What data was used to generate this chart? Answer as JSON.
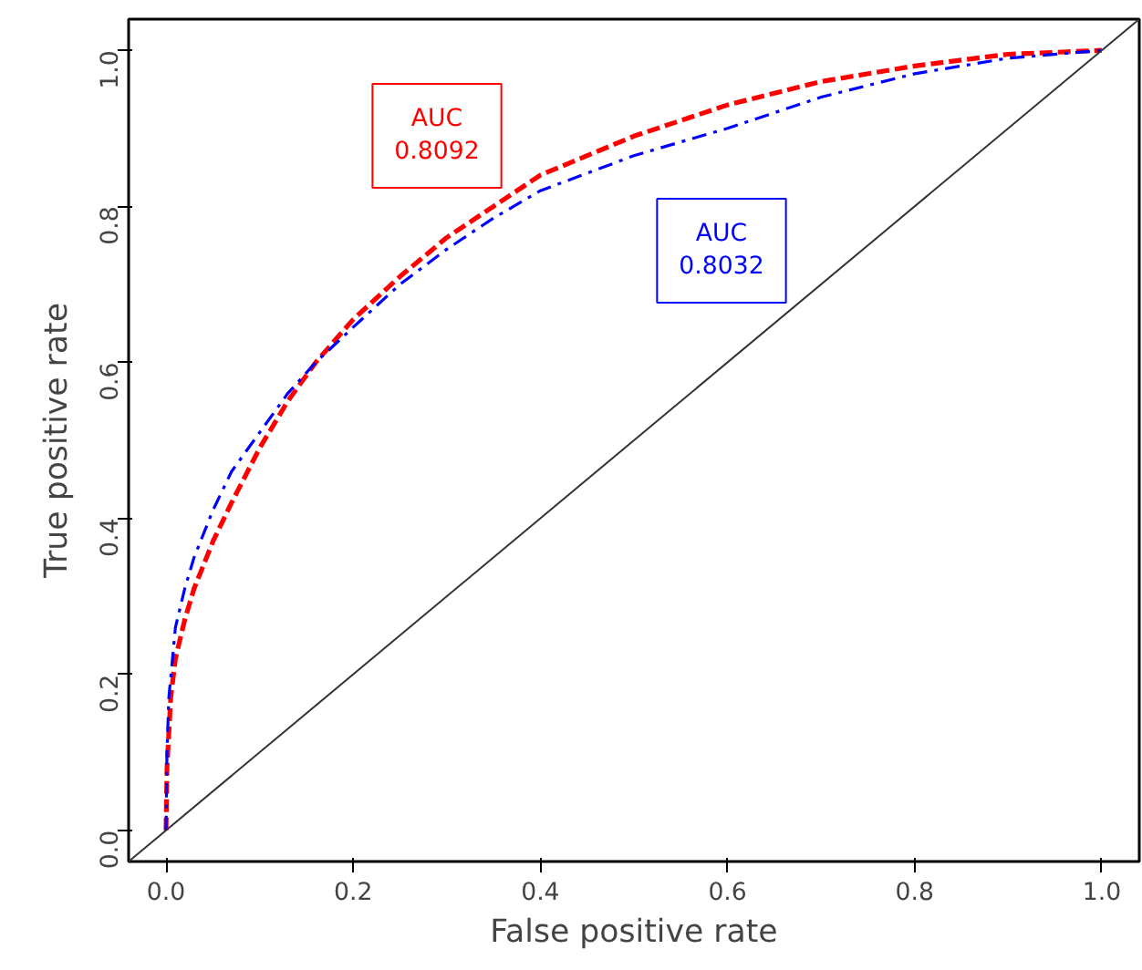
{
  "chart_data": {
    "type": "line",
    "xlabel": "False positive rate",
    "ylabel": "True positive rate",
    "xlim": [
      -0.04,
      1.04
    ],
    "ylim": [
      -0.04,
      1.04
    ],
    "xticks": [
      {
        "value": 0,
        "label": "0.0"
      },
      0.2,
      0.4,
      0.6,
      0.8,
      {
        "value": 1,
        "label": "1.0"
      }
    ],
    "yticks": [
      {
        "value": 0,
        "label": "0.0"
      },
      0.2,
      0.4,
      0.6,
      0.8,
      {
        "value": 1,
        "label": "1.0"
      }
    ],
    "grid": false,
    "series": [
      {
        "color": "#ff0000",
        "line_style": "dashed",
        "x": [
          0,
          0.001,
          0.005,
          0.01,
          0.02,
          0.03,
          0.05,
          0.07,
          0.1,
          0.13,
          0.16,
          0.2,
          0.25,
          0.3,
          0.35,
          0.4,
          0.5,
          0.6,
          0.7,
          0.8,
          0.9,
          1
        ],
        "values": [
          0,
          0.08,
          0.17,
          0.22,
          0.27,
          0.31,
          0.37,
          0.42,
          0.49,
          0.55,
          0.6,
          0.655,
          0.71,
          0.76,
          0.8,
          0.84,
          0.89,
          0.93,
          0.96,
          0.98,
          0.995,
          1
        ]
      },
      {
        "color": "#0000ff",
        "line_style": "dashdot",
        "x": [
          0,
          0.001,
          0.003,
          0.01,
          0.02,
          0.03,
          0.05,
          0.07,
          0.1,
          0.13,
          0.16,
          0.2,
          0.25,
          0.3,
          0.35,
          0.4,
          0.5,
          0.6,
          0.7,
          0.8,
          0.9,
          1
        ],
        "values": [
          0,
          0.1,
          0.17,
          0.26,
          0.31,
          0.35,
          0.41,
          0.46,
          0.51,
          0.56,
          0.6,
          0.645,
          0.7,
          0.745,
          0.785,
          0.82,
          0.865,
          0.9,
          0.94,
          0.97,
          0.99,
          1
        ]
      },
      {
        "color": "#333333",
        "line_style": "solid",
        "x": [
          -0.04,
          1.04
        ],
        "values": [
          -0.04,
          1.04
        ]
      }
    ],
    "annotations": [
      "AUC\n0.8092",
      "AUC\n0.8032"
    ]
  }
}
